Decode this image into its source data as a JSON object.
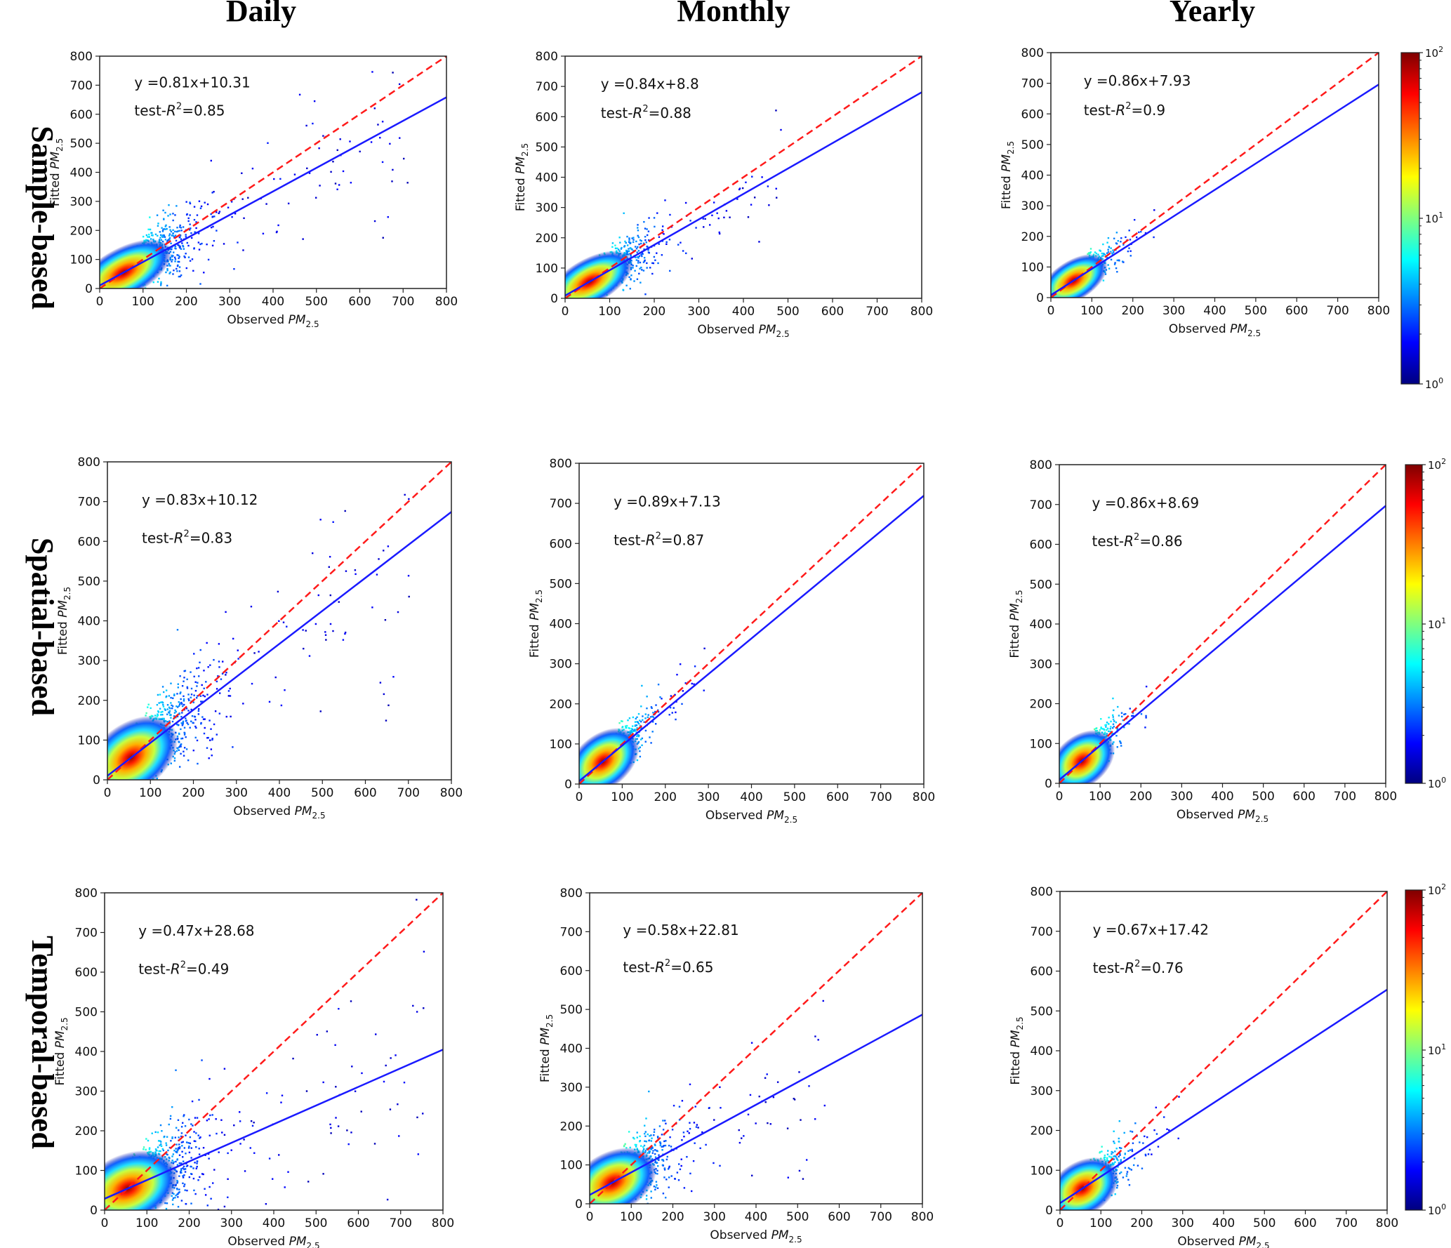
{
  "column_titles": [
    "Daily",
    "Monthly",
    "Yearly"
  ],
  "row_titles": [
    "Sample-based",
    "Spatial-based",
    "Temporal-based"
  ],
  "colorbar": {
    "tick_labels": [
      {
        "base": "10",
        "exp": "2"
      },
      {
        "base": "10",
        "exp": "1"
      },
      {
        "base": "10",
        "exp": "0"
      }
    ],
    "colors": [
      "#00007f",
      "#0000ff",
      "#007fff",
      "#00ffff",
      "#7fff7f",
      "#ffff00",
      "#ff7f00",
      "#ff0000",
      "#7f0000"
    ]
  },
  "line_colors": {
    "identity": "#ff1a1a",
    "fit": "#1a1aff"
  },
  "chart_data": [
    {
      "type": "scatter",
      "row": 0,
      "col": 0,
      "equation": "y =0.81x+10.31",
      "r2_prefix": "test-",
      "r2_symbol": "R",
      "r2_exp": "2",
      "r2_value": "=0.85",
      "slope": 0.81,
      "intercept": 10.31,
      "spread": 0.9,
      "xlabel": "Observed",
      "ylabel": "Fitted",
      "label_sym": "PM",
      "label_sub": "2.5",
      "xlim": [
        0,
        800
      ],
      "ylim": [
        0,
        800
      ],
      "ticks": [
        0,
        100,
        200,
        300,
        400,
        500,
        600,
        700,
        800
      ]
    },
    {
      "type": "scatter",
      "row": 0,
      "col": 1,
      "equation": "y =0.84x+8.8",
      "r2_prefix": "test-",
      "r2_symbol": "R",
      "r2_exp": "2",
      "r2_value": "=0.88",
      "slope": 0.84,
      "intercept": 8.8,
      "spread": 0.6,
      "xlabel": "Observed",
      "ylabel": "Fitted",
      "label_sym": "PM",
      "label_sub": "2.5",
      "xlim": [
        0,
        800
      ],
      "ylim": [
        0,
        800
      ],
      "ticks": [
        0,
        100,
        200,
        300,
        400,
        500,
        600,
        700,
        800
      ]
    },
    {
      "type": "scatter",
      "row": 0,
      "col": 2,
      "equation": "y =0.86x+7.93",
      "r2_prefix": "test-",
      "r2_symbol": "R",
      "r2_exp": "2",
      "r2_value": "=0.9",
      "slope": 0.86,
      "intercept": 7.93,
      "spread": 0.3,
      "xlabel": "Observed",
      "ylabel": "Fitted",
      "label_sym": "PM",
      "label_sub": "2.5",
      "xlim": [
        0,
        800
      ],
      "ylim": [
        0,
        800
      ],
      "ticks": [
        0,
        100,
        200,
        300,
        400,
        500,
        600,
        700,
        800
      ]
    },
    {
      "type": "scatter",
      "row": 1,
      "col": 0,
      "equation": "y =0.83x+10.12",
      "r2_prefix": "test-",
      "r2_symbol": "R",
      "r2_exp": "2",
      "r2_value": "=0.83",
      "slope": 0.83,
      "intercept": 10.12,
      "spread": 0.9,
      "xlabel": "Observed",
      "ylabel": "Fitted",
      "label_sym": "PM",
      "label_sub": "2.5",
      "xlim": [
        0,
        800
      ],
      "ylim": [
        0,
        800
      ],
      "ticks": [
        0,
        100,
        200,
        300,
        400,
        500,
        600,
        700,
        800
      ]
    },
    {
      "type": "scatter",
      "row": 1,
      "col": 1,
      "equation": "y =0.89x+7.13",
      "r2_prefix": "test-",
      "r2_symbol": "R",
      "r2_exp": "2",
      "r2_value": "=0.87",
      "slope": 0.89,
      "intercept": 7.13,
      "spread": 0.35,
      "xlabel": "Observed",
      "ylabel": "Fitted",
      "label_sym": "PM",
      "label_sub": "2.5",
      "xlim": [
        0,
        800
      ],
      "ylim": [
        0,
        800
      ],
      "ticks": [
        0,
        100,
        200,
        300,
        400,
        500,
        600,
        700,
        800
      ]
    },
    {
      "type": "scatter",
      "row": 1,
      "col": 2,
      "equation": "y =0.86x+8.69",
      "r2_prefix": "test-",
      "r2_symbol": "R",
      "r2_exp": "2",
      "r2_value": "=0.86",
      "slope": 0.86,
      "intercept": 8.69,
      "spread": 0.25,
      "xlabel": "Observed",
      "ylabel": "Fitted",
      "label_sym": "PM",
      "label_sub": "2.5",
      "xlim": [
        0,
        800
      ],
      "ylim": [
        0,
        800
      ],
      "ticks": [
        0,
        100,
        200,
        300,
        400,
        500,
        600,
        700,
        800
      ]
    },
    {
      "type": "scatter",
      "row": 2,
      "col": 0,
      "equation": "y =0.47x+28.68",
      "r2_prefix": "test-",
      "r2_symbol": "R",
      "r2_exp": "2",
      "r2_value": "=0.49",
      "slope": 0.47,
      "intercept": 28.68,
      "spread": 0.95,
      "xlabel": "Observed",
      "ylabel": "Fitted",
      "label_sym": "PM",
      "label_sub": "2.5",
      "xlim": [
        0,
        800
      ],
      "ylim": [
        0,
        800
      ],
      "ticks": [
        0,
        100,
        200,
        300,
        400,
        500,
        600,
        700,
        800
      ]
    },
    {
      "type": "scatter",
      "row": 2,
      "col": 1,
      "equation": "y =0.58x+22.81",
      "r2_prefix": "test-",
      "r2_symbol": "R",
      "r2_exp": "2",
      "r2_value": "=0.65",
      "slope": 0.58,
      "intercept": 22.81,
      "spread": 0.7,
      "xlabel": "Observed",
      "ylabel": "Fitted",
      "label_sym": "PM",
      "label_sub": "2.5",
      "xlim": [
        0,
        800
      ],
      "ylim": [
        0,
        800
      ],
      "ticks": [
        0,
        100,
        200,
        300,
        400,
        500,
        600,
        700,
        800
      ]
    },
    {
      "type": "scatter",
      "row": 2,
      "col": 2,
      "equation": "y =0.67x+17.42",
      "r2_prefix": "test-",
      "r2_symbol": "R",
      "r2_exp": "2",
      "r2_value": "=0.76",
      "slope": 0.67,
      "intercept": 17.42,
      "spread": 0.35,
      "xlabel": "Observed",
      "ylabel": "Fitted",
      "label_sym": "PM",
      "label_sub": "2.5",
      "xlim": [
        0,
        800
      ],
      "ylim": [
        0,
        800
      ],
      "ticks": [
        0,
        100,
        200,
        300,
        400,
        500,
        600,
        700,
        800
      ]
    }
  ]
}
